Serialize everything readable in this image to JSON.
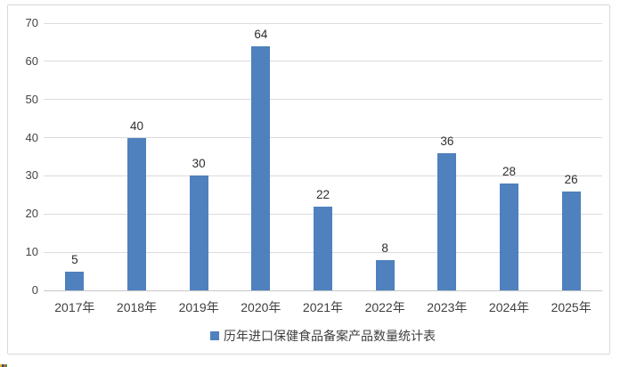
{
  "chart_data": {
    "type": "bar",
    "categories": [
      "2017年",
      "2018年",
      "2019年",
      "2020年",
      "2021年",
      "2022年",
      "2023年",
      "2024年",
      "2025年"
    ],
    "values": [
      5,
      40,
      30,
      64,
      22,
      8,
      36,
      28,
      26
    ],
    "title": "",
    "xlabel": "",
    "ylabel": "",
    "ylim": [
      0,
      70
    ],
    "ytick_step": 10,
    "yticks": [
      0,
      10,
      20,
      30,
      40,
      50,
      60,
      70
    ],
    "grid": true,
    "legend": [
      "历年进口保健食品备案产品数量统计表"
    ],
    "legend_position": "bottom",
    "data_labels_shown": true,
    "bar_color": "#4e81bd",
    "gridline_color": "#dbdbdb",
    "axis_line_color": "#c8c8c8",
    "label_color": "#3f3f3f",
    "chart_border_color": "#d8d8d8"
  },
  "artifact": {
    "colors": [
      "#e9b90a",
      "#27489c",
      "#dd5426",
      "#36a345"
    ]
  }
}
